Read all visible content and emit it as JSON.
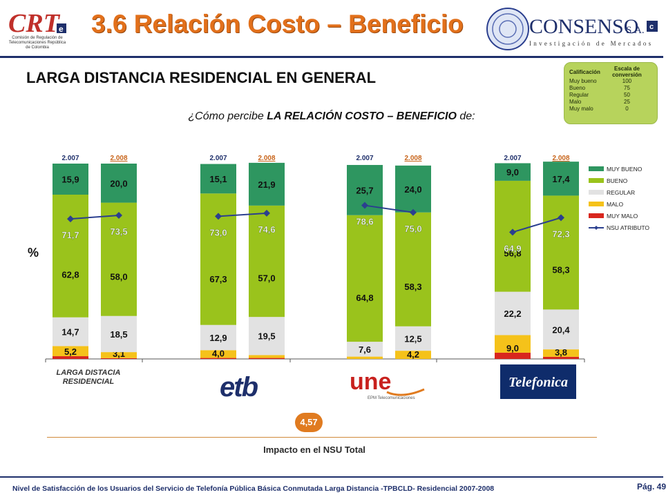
{
  "header": {
    "title": "3.6 Relación Costo – Beneficio",
    "crt_logo_text": "CRT",
    "crt_logo_caption": "Comisión de Regulación de Telecomunicaciones República de Colombia",
    "consenso_name": "CONSENSO",
    "consenso_suffix": "S.A.",
    "consenso_tagline": "Investigación de Mercados"
  },
  "section_title": "LARGA DISTANCIA RESIDENCIAL EN GENERAL",
  "question": {
    "prefix": "¿Cómo percibe ",
    "bold": "LA RELACIÓN COSTO – BENEFICIO",
    "suffix": " de:"
  },
  "scale_table": {
    "headers": [
      "Calificación",
      "Escala de conversión"
    ],
    "rows": [
      {
        "label": "Muy bueno",
        "value": "100"
      },
      {
        "label": "Bueno",
        "value": "75"
      },
      {
        "label": "Regular",
        "value": "50"
      },
      {
        "label": "Malo",
        "value": "25"
      },
      {
        "label": "Muy malo",
        "value": "0"
      }
    ]
  },
  "percent_sign": "%",
  "group_label_0": "LARGA DISTACIA RESIDENCIAL",
  "logo_texts": {
    "etb": "etb",
    "une": "une",
    "une_caption": "EPM Telecomunicaciones",
    "telefonica": "Telefonica"
  },
  "impact": {
    "badge": "4,57",
    "label": "Impacto en el NSU Total"
  },
  "footer": {
    "text": "Nivel de Satisfacción de los Usuarios del Servicio de Telefonía Pública Básica Conmutada Larga Distancia -TPBCLD- Residencial 2007-2008",
    "page": "Pág. 49"
  },
  "chart_data": {
    "type": "bar",
    "stacked": true,
    "groups": [
      "LARGA DISTACIA RESIDENCIAL",
      "etb",
      "une",
      "Telefonica"
    ],
    "year_labels": [
      "2.007",
      "2.008"
    ],
    "ylim": [
      0,
      100
    ],
    "colors": {
      "MUY BUENO": "#2e9660",
      "BUENO": "#9ac31c",
      "REGULAR": "#e2e2e2",
      "MALO": "#f5c21a",
      "MUY MALO": "#d8261e",
      "NSU ATRIBUTO": "#2b3f8f"
    },
    "legend": [
      "MUY BUENO",
      "BUENO",
      "REGULAR",
      "MALO",
      "MUY MALO",
      "NSU ATRIBUTO"
    ],
    "legend_position": "right",
    "series": [
      {
        "name": "MUY MALO",
        "values": [
          [
            1.4,
            0.4
          ],
          [
            0.5,
            0.5
          ],
          [
            0.0,
            0.0
          ],
          [
            3.2,
            1.1
          ]
        ]
      },
      {
        "name": "MALO",
        "values": [
          [
            5.2,
            3.1
          ],
          [
            4.0,
            1.5
          ],
          [
            1.2,
            4.2
          ],
          [
            9.0,
            3.8
          ]
        ]
      },
      {
        "name": "REGULAR",
        "values": [
          [
            14.7,
            18.5
          ],
          [
            12.9,
            19.5
          ],
          [
            7.6,
            12.5
          ],
          [
            22.2,
            20.4
          ]
        ]
      },
      {
        "name": "BUENO",
        "values": [
          [
            62.8,
            58.0
          ],
          [
            67.3,
            57.0
          ],
          [
            64.8,
            58.3
          ],
          [
            56.8,
            58.3
          ]
        ]
      },
      {
        "name": "MUY BUENO",
        "values": [
          [
            15.9,
            20.0
          ],
          [
            15.1,
            21.9
          ],
          [
            25.7,
            24.0
          ],
          [
            9.0,
            17.4
          ]
        ]
      }
    ],
    "labels": {
      "MUY MALO": [
        [
          "",
          ""
        ],
        [
          "",
          ""
        ],
        [
          "",
          ""
        ],
        [
          "",
          ""
        ]
      ],
      "MALO": [
        [
          "5,2",
          "3,1"
        ],
        [
          "4,0",
          ""
        ],
        [
          "",
          "4,2"
        ],
        [
          "9,0",
          "3,8"
        ]
      ],
      "REGULAR": [
        [
          "14,7",
          "18,5"
        ],
        [
          "12,9",
          "19,5"
        ],
        [
          "7,6",
          "12,5"
        ],
        [
          "22,2",
          "20,4"
        ]
      ],
      "BUENO": [
        [
          "62,8",
          "58,0"
        ],
        [
          "67,3",
          "57,0"
        ],
        [
          "64,8",
          "58,3"
        ],
        [
          "56,8",
          "58,3"
        ]
      ],
      "MUY BUENO": [
        [
          "15,9",
          "20,0"
        ],
        [
          "15,1",
          "21,9"
        ],
        [
          "25,7",
          "24,0"
        ],
        [
          "9,0",
          "17,4"
        ]
      ]
    },
    "nsu": {
      "values": [
        [
          71.7,
          73.5
        ],
        [
          73.0,
          74.6
        ],
        [
          78.6,
          75.0
        ],
        [
          64.9,
          72.3
        ]
      ],
      "labels": [
        [
          "71,7",
          "73,5"
        ],
        [
          "73,0",
          "74,6"
        ],
        [
          "78,6",
          "75,0"
        ],
        [
          "64,9",
          "72,3"
        ]
      ]
    }
  }
}
